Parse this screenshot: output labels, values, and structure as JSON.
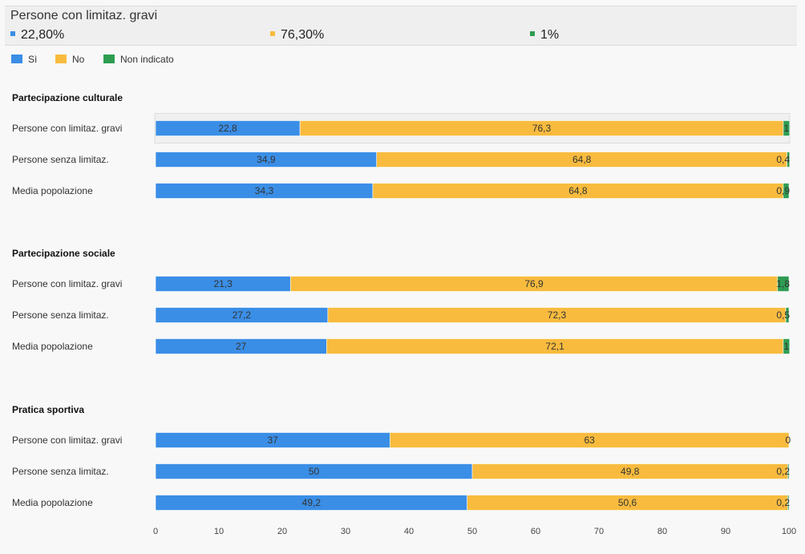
{
  "tooltip": {
    "title": "Persone con limitaz. gravi",
    "items": [
      {
        "label": "22,80%",
        "color": "#3a8ee6"
      },
      {
        "label": "76,30%",
        "color": "#f8bb3e"
      },
      {
        "label": "1%",
        "color": "#2e9d52"
      }
    ]
  },
  "colors": {
    "si": "#3a8ee6",
    "no": "#f8bb3e",
    "na": "#2e9d52"
  },
  "chart_data": {
    "type": "bar",
    "orientation": "horizontal",
    "stacked": true,
    "legend": [
      "Sì",
      "No",
      "Non indicato"
    ],
    "legend_position": "top-left",
    "xlim": [
      0,
      100
    ],
    "xticks": [
      0,
      10,
      20,
      30,
      40,
      50,
      60,
      70,
      80,
      90,
      100
    ],
    "groups": [
      {
        "title": "Partecipazione culturale",
        "rows": [
          {
            "label": "Persone con limitaz. gravi",
            "values": [
              22.8,
              76.3,
              1
            ],
            "labels": [
              "22,8",
              "76,3",
              "1"
            ],
            "highlighted": true
          },
          {
            "label": "Persone senza limitaz.",
            "values": [
              34.9,
              64.8,
              0.4
            ],
            "labels": [
              "34,9",
              "64,8",
              "0,4"
            ]
          },
          {
            "label": "Media popolazione",
            "values": [
              34.3,
              64.8,
              0.9
            ],
            "labels": [
              "34,3",
              "64,8",
              "0,9"
            ]
          }
        ]
      },
      {
        "title": "Partecipazione sociale",
        "rows": [
          {
            "label": "Persone con limitaz. gravi",
            "values": [
              21.3,
              76.9,
              1.8
            ],
            "labels": [
              "21,3",
              "76,9",
              "1,8"
            ]
          },
          {
            "label": "Persone senza limitaz.",
            "values": [
              27.2,
              72.3,
              0.5
            ],
            "labels": [
              "27,2",
              "72,3",
              "0,5"
            ]
          },
          {
            "label": "Media popolazione",
            "values": [
              27,
              72.1,
              1
            ],
            "labels": [
              "27",
              "72,1",
              "1"
            ]
          }
        ]
      },
      {
        "title": "Pratica sportiva",
        "rows": [
          {
            "label": "Persone con limitaz. gravi",
            "values": [
              37,
              63,
              0
            ],
            "labels": [
              "37",
              "63",
              "0"
            ]
          },
          {
            "label": "Persone senza limitaz.",
            "values": [
              50,
              49.8,
              0.2
            ],
            "labels": [
              "50",
              "49,8",
              "0,2"
            ]
          },
          {
            "label": "Media popolazione",
            "values": [
              49.2,
              50.6,
              0.2
            ],
            "labels": [
              "49,2",
              "50,6",
              "0,2"
            ]
          }
        ]
      }
    ]
  }
}
